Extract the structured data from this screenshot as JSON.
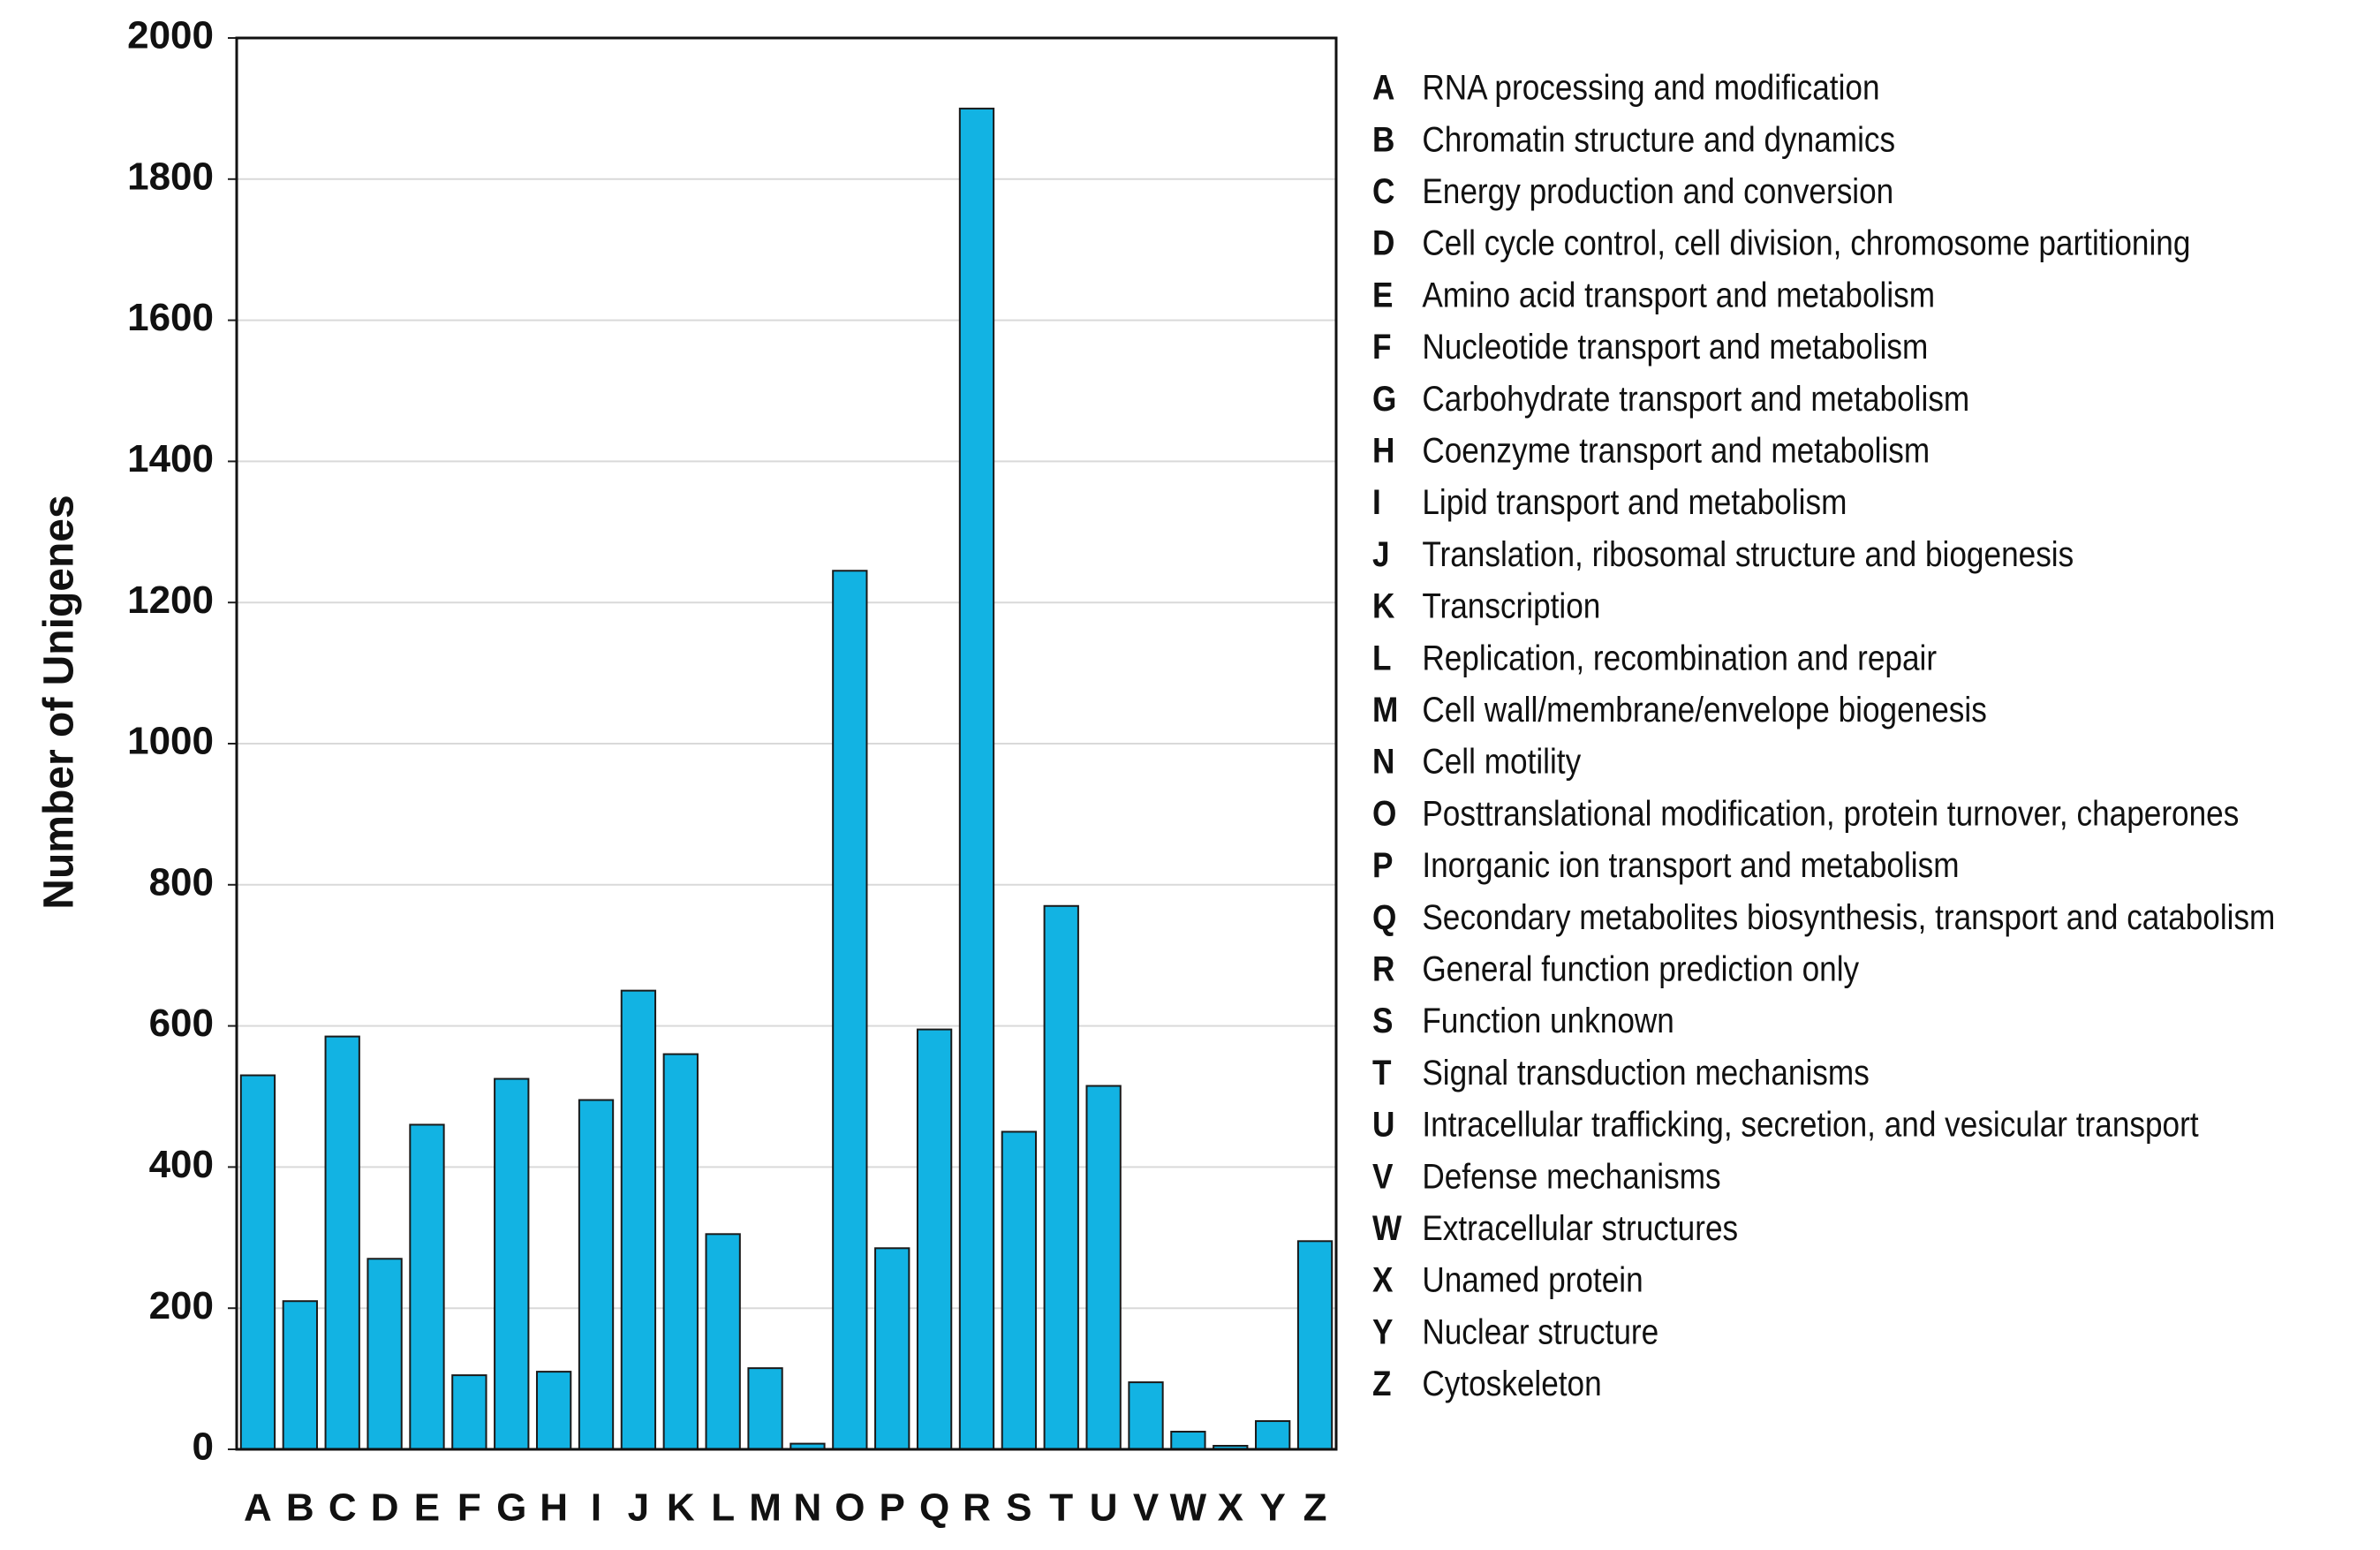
{
  "chart_data": {
    "type": "bar",
    "y_label": "Number of Unigenes",
    "categories": [
      "A",
      "B",
      "C",
      "D",
      "E",
      "F",
      "G",
      "H",
      "I",
      "J",
      "K",
      "L",
      "M",
      "N",
      "O",
      "P",
      "Q",
      "R",
      "S",
      "T",
      "U",
      "V",
      "W",
      "X",
      "Y",
      "Z"
    ],
    "values": [
      530,
      210,
      585,
      270,
      460,
      105,
      525,
      110,
      495,
      650,
      560,
      305,
      115,
      8,
      1245,
      285,
      595,
      1900,
      450,
      770,
      515,
      95,
      25,
      5,
      40,
      295
    ],
    "descriptions": [
      "RNA processing and modification",
      "Chromatin structure and dynamics",
      "Energy production and conversion",
      "Cell cycle control, cell division, chromosome partitioning",
      "Amino acid transport and metabolism",
      "Nucleotide transport and metabolism",
      "Carbohydrate transport and metabolism",
      "Coenzyme transport and metabolism",
      "Lipid transport and metabolism",
      "Translation, ribosomal structure and biogenesis",
      "Transcription",
      "Replication, recombination and repair",
      "Cell wall/membrane/envelope biogenesis",
      "Cell motility",
      "Posttranslational modification, protein turnover, chaperones",
      "Inorganic ion transport and metabolism",
      "Secondary metabolites biosynthesis, transport and catabolism",
      "General function prediction only",
      "Function unknown",
      "Signal transduction mechanisms",
      "Intracellular trafficking, secretion, and vesicular transport",
      "Defense mechanisms",
      "Extracellular structures",
      "Unamed protein",
      "Nuclear structure",
      "Cytoskeleton"
    ],
    "color": "#12b3e3",
    "ylim": [
      0,
      2000
    ],
    "yticks": [
      0,
      200,
      400,
      600,
      800,
      1000,
      1200,
      1400,
      1600,
      1800,
      2000
    ],
    "grid": true
  }
}
